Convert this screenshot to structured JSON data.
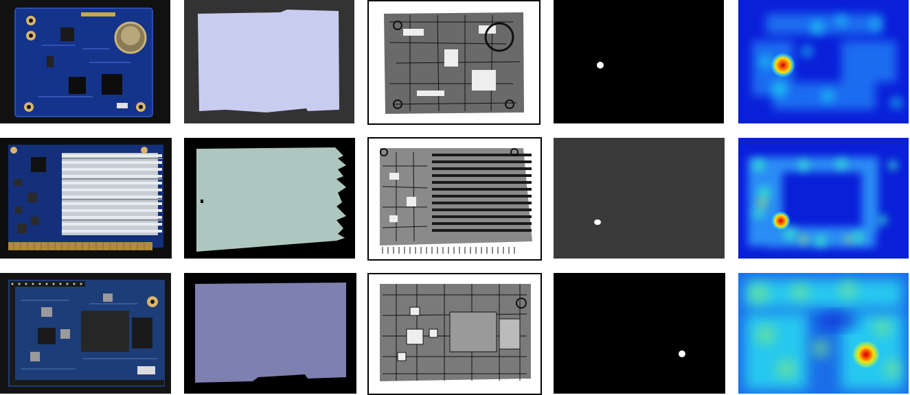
{
  "grid": {
    "rows": 3,
    "columns": [
      "photo",
      "segmentation-mask",
      "edge-map",
      "defect-mask",
      "heatmap"
    ]
  },
  "colors": {
    "page_bg": "#ffffff",
    "row1_mask": "#c8cdf0",
    "row2_mask": "#adc6bf",
    "row3_mask": "#7e80b0",
    "row1_mask_bg": "#333333",
    "row2_mask_bg": "#000000",
    "row3_mask_bg": "#000000",
    "row1_defect_bg": "#000000",
    "row2_defect_bg": "#3a3a3a",
    "row3_defect_bg": "#000000",
    "heat_low": "#0a1fd8",
    "heat_mid": "#1fd0f0",
    "heat_peak": "#c80000"
  },
  "rows": [
    {
      "name": "pcb-with-coin-cell-battery",
      "hotspot": "upper-left"
    },
    {
      "name": "pcb-with-heatsink",
      "hotspot": "lower-left"
    },
    {
      "name": "pcb-with-chips",
      "hotspot": "lower-right"
    }
  ]
}
